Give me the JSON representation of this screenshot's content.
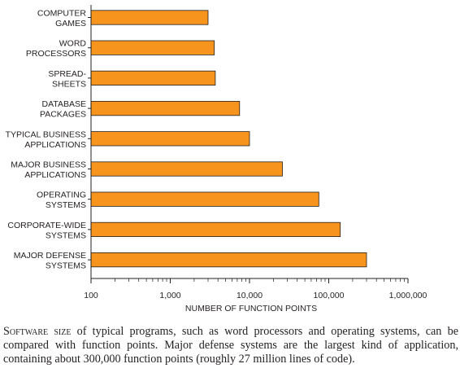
{
  "chart_data": {
    "type": "bar",
    "orientation": "horizontal",
    "categories": [
      [
        "COMPUTER",
        "GAMES"
      ],
      [
        "WORD",
        "PROCESSORS"
      ],
      [
        "SPREAD-",
        "SHEETS"
      ],
      [
        "DATABASE",
        "PACKAGES"
      ],
      [
        "TYPICAL BUSINESS",
        "APPLICATIONS"
      ],
      [
        "MAJOR BUSINESS",
        "APPLICATIONS"
      ],
      [
        "OPERATING",
        "SYSTEMS"
      ],
      [
        "CORPORATE-WIDE",
        "SYSTEMS"
      ],
      [
        "MAJOR DEFENSE",
        "SYSTEMS"
      ]
    ],
    "values": [
      3000,
      3600,
      3700,
      7500,
      10000,
      26000,
      75000,
      140000,
      300000
    ],
    "xlabel": "NUMBER OF FUNCTION POINTS",
    "xscale": "log",
    "xlim": [
      100,
      1000000
    ],
    "xticks": [
      "100",
      "1,000",
      "10,000",
      "100,000",
      "1,000,000"
    ],
    "grid": false,
    "bar_color": "#f7941d",
    "bar_edge_color": "#231f20"
  },
  "caption": {
    "lead": "Software size",
    "text": " of typical programs, such as word processors and operating systems, can be compared with function points. Major defense systems are the largest kind of application, containing about 300,000 function points (roughly 27 million lines of code)."
  }
}
